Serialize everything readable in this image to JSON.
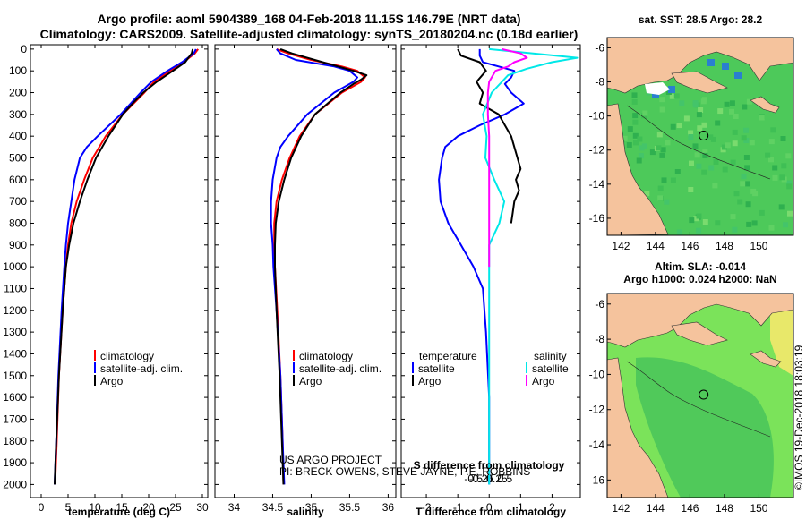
{
  "header": {
    "title_line1": "Argo profile: aoml 5904389_168 04-Feb-2018 11.15S 146.79E (NRT data)",
    "title_line2": "Climatology: CARS2009. Satellite-adjusted climatology: synTS_20180204.nc (0.18d earlier)"
  },
  "credit": {
    "line1": "US ARGO PROJECT",
    "line2": "PI: BRECK OWENS, STEVE JAYNE, P.E. ROBBINS"
  },
  "stamp": "©IMOS 19-Dec-2018 18:03:19",
  "colors": {
    "climatology": "#ff0000",
    "satellite": "#0000ff",
    "argo": "#000000",
    "salinity_satellite": "#00e8e8",
    "salinity_argo": "#ff00ff",
    "land": "#f5c39d",
    "ocean": "#6bd36b"
  },
  "maps": [
    {
      "title": "sat. SST: 28.5 Argo: 28.2",
      "yticks": [
        "-6",
        "-8",
        "-10",
        "-12",
        "-14",
        "-16"
      ],
      "xticks": [
        "142",
        "144",
        "146",
        "148",
        "150"
      ],
      "marker": {
        "lon": 146.79,
        "lat": -11.15
      }
    },
    {
      "title_line1": "Altim. SLA: -0.014",
      "title_line2": "Argo h1000: 0.024 h2000: NaN",
      "yticks": [
        "-6",
        "-8",
        "-10",
        "-12",
        "-14",
        "-16"
      ],
      "xticks": [
        "142",
        "144",
        "146",
        "148",
        "150"
      ],
      "marker": {
        "lon": 146.79,
        "lat": -11.15
      }
    }
  ],
  "chart_data": [
    {
      "type": "line",
      "name": "temperature",
      "xlabel": "temperature (deg C)",
      "ylabel": "",
      "xlim": [
        -2,
        31
      ],
      "ylim": [
        2060,
        -20
      ],
      "xticks": [
        "0",
        "5",
        "10",
        "15",
        "20",
        "25",
        "30"
      ],
      "yticks": [
        "0",
        "100",
        "200",
        "300",
        "400",
        "500",
        "600",
        "700",
        "800",
        "900",
        "1000",
        "1100",
        "1200",
        "1300",
        "1400",
        "1500",
        "1600",
        "1700",
        "1800",
        "1900",
        "2000"
      ],
      "legend": [
        "climatology",
        "satellite-adj. clim.",
        "Argo"
      ],
      "series": [
        {
          "name": "climatology",
          "depth": [
            0,
            20,
            60,
            100,
            150,
            200,
            300,
            400,
            500,
            600,
            700,
            800,
            900,
            1000,
            1200,
            1500,
            1800,
            2000
          ],
          "values": [
            29.2,
            28.6,
            26.5,
            24.0,
            21.0,
            19.2,
            15.2,
            12.0,
            9.6,
            8.0,
            6.6,
            5.6,
            5.0,
            4.6,
            4.0,
            3.3,
            2.9,
            2.6
          ]
        },
        {
          "name": "satellite-adj. clim.",
          "depth": [
            0,
            20,
            60,
            100,
            150,
            200,
            300,
            400,
            450,
            500,
            600,
            700,
            800,
            900,
            1000,
            1200,
            1500,
            1800,
            2000
          ],
          "values": [
            28.8,
            28.4,
            26.2,
            23.5,
            20.5,
            18.5,
            14.8,
            10.5,
            8.5,
            7.2,
            6.2,
            5.6,
            5.0,
            4.6,
            4.3,
            3.8,
            3.2,
            2.8,
            2.5
          ]
        },
        {
          "name": "Argo",
          "depth": [
            0,
            20,
            60,
            100,
            150,
            200,
            250,
            300,
            400,
            500,
            600,
            700,
            800,
            900,
            1000,
            1200,
            1500,
            1800,
            2000
          ],
          "values": [
            28.2,
            28.0,
            26.8,
            24.5,
            21.5,
            19.0,
            17.0,
            15.2,
            12.5,
            10.2,
            8.6,
            7.2,
            6.0,
            5.2,
            4.6,
            4.0,
            3.3,
            2.8,
            2.5
          ]
        }
      ]
    },
    {
      "type": "line",
      "name": "salinity",
      "xlabel": "salinity",
      "ylabel": "",
      "xlim": [
        33.75,
        36.1
      ],
      "ylim": [
        2060,
        -20
      ],
      "xticks": [
        "34",
        "34.5",
        "35",
        "35.5",
        "36"
      ],
      "legend": [
        "climatology",
        "satellite-adj. clim.",
        "Argo"
      ],
      "series": [
        {
          "name": "climatology",
          "depth": [
            0,
            20,
            50,
            80,
            100,
            130,
            150,
            200,
            300,
            400,
            500,
            600,
            700,
            800,
            900,
            1000,
            1200,
            1500,
            1800,
            2000
          ],
          "values": [
            34.55,
            34.7,
            35.0,
            35.4,
            35.6,
            35.7,
            35.65,
            35.4,
            35.05,
            34.85,
            34.72,
            34.62,
            34.55,
            34.52,
            34.52,
            34.53,
            34.56,
            34.6,
            34.63,
            34.64
          ]
        },
        {
          "name": "satellite-adj. clim.",
          "depth": [
            0,
            20,
            50,
            80,
            100,
            130,
            150,
            200,
            300,
            400,
            450,
            500,
            600,
            700,
            800,
            900,
            1000,
            1200,
            1500,
            1800,
            2000
          ],
          "values": [
            34.55,
            34.6,
            34.8,
            35.3,
            35.5,
            35.6,
            35.55,
            35.3,
            34.95,
            34.7,
            34.6,
            34.55,
            34.5,
            34.48,
            34.48,
            34.5,
            34.51,
            34.55,
            34.6,
            34.63,
            34.65
          ]
        },
        {
          "name": "Argo",
          "depth": [
            0,
            20,
            40,
            60,
            80,
            100,
            120,
            140,
            160,
            200,
            300,
            400,
            500,
            600,
            700,
            800,
            900,
            1000,
            1200,
            1500,
            1800,
            2000
          ],
          "values": [
            34.6,
            34.75,
            34.95,
            35.15,
            35.35,
            35.55,
            35.72,
            35.65,
            35.55,
            35.38,
            35.05,
            34.87,
            34.74,
            34.65,
            34.58,
            34.54,
            34.53,
            34.53,
            34.55,
            34.59,
            34.62,
            34.64
          ]
        }
      ]
    },
    {
      "type": "line",
      "name": "difference",
      "xlabel": "T difference from climatology",
      "xlabel_top": "S difference from climatology",
      "xlim": [
        -2.8,
        2.9
      ],
      "ylim": [
        2060,
        -20
      ],
      "xticks": [
        "-2",
        "-1",
        "0",
        "1",
        "2"
      ],
      "xticks_top": [
        "-0.5",
        "-0.25",
        "0",
        "0.25",
        "0.5"
      ],
      "legend_left_header": "temperature",
      "legend_right_header": "salinity",
      "legend_left": [
        "satellite",
        "Argo"
      ],
      "legend_right": [
        "satellite",
        "Argo"
      ],
      "series": [
        {
          "name": "T satellite",
          "depth": [
            0,
            30,
            60,
            80,
            100,
            130,
            160,
            200,
            250,
            300,
            350,
            400,
            450,
            500,
            600,
            700,
            800,
            900,
            1000,
            1100,
            1300,
            1600,
            2000
          ],
          "values": [
            -0.3,
            -0.3,
            -0.2,
            0.3,
            0.8,
            0.7,
            0.5,
            0.7,
            1.1,
            0.5,
            -0.3,
            -1.0,
            -1.4,
            -1.5,
            -1.6,
            -1.55,
            -1.3,
            -0.9,
            -0.5,
            -0.2,
            -0.1,
            0.0,
            0.0
          ]
        },
        {
          "name": "T Argo",
          "depth": [
            0,
            30,
            60,
            100,
            150,
            200,
            250,
            300,
            350,
            400,
            450,
            500,
            550,
            600,
            650,
            700,
            750,
            800
          ],
          "values": [
            -1.0,
            -0.9,
            -0.3,
            -0.1,
            -0.4,
            -0.2,
            -0.3,
            0.3,
            0.5,
            0.7,
            0.8,
            0.9,
            1.0,
            0.85,
            0.95,
            0.8,
            0.75,
            0.7
          ]
        },
        {
          "name": "S satellite",
          "depth": [
            0,
            20,
            40,
            60,
            90,
            120,
            200,
            300,
            400,
            500,
            600,
            700,
            800,
            900,
            1000,
            1200,
            1500,
            1800,
            2000
          ],
          "values": [
            0.0,
            0.35,
            0.7,
            0.5,
            0.3,
            0.15,
            0.02,
            -0.05,
            -0.02,
            -0.03,
            0.04,
            0.12,
            0.08,
            0.0,
            0.0,
            0.0,
            0.0,
            0.0,
            0.0
          ]
        },
        {
          "name": "S Argo",
          "depth": [
            0,
            20,
            40,
            60,
            80,
            100,
            150,
            200,
            300,
            400,
            500,
            600,
            700,
            800,
            900,
            1000
          ],
          "values": [
            0.1,
            0.25,
            0.3,
            0.2,
            0.15,
            0.05,
            0.0,
            -0.01,
            -0.01,
            0.0,
            0.0,
            0.0,
            0.0,
            0.0,
            0.0,
            0.0
          ]
        }
      ]
    }
  ]
}
